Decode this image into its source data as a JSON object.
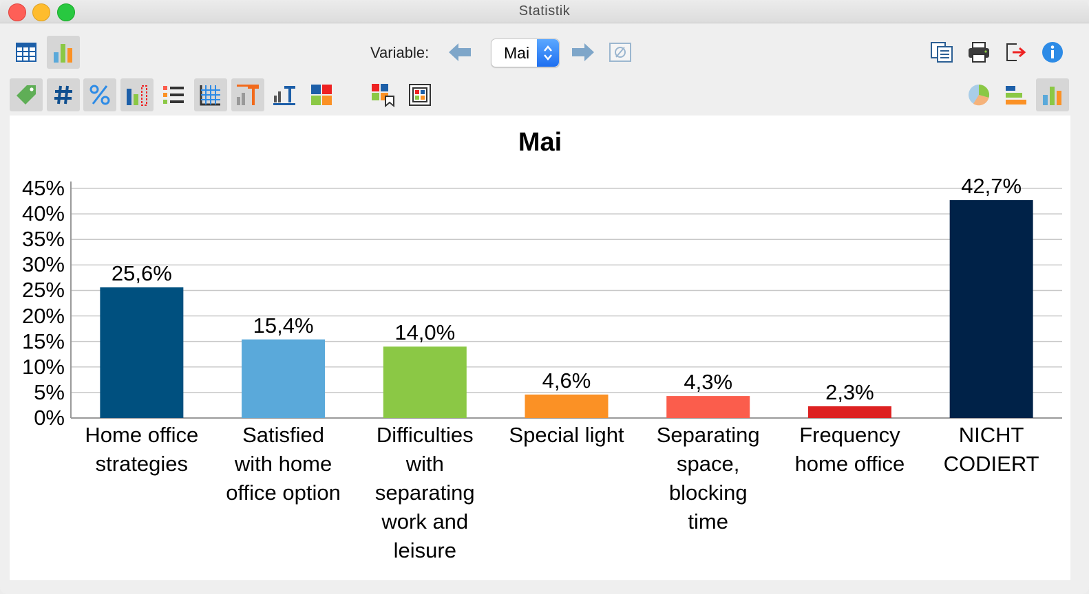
{
  "window": {
    "title": "Statistik"
  },
  "toolbar": {
    "variable_label": "Variable:",
    "variable_value": "Mai",
    "icons_top_left": [
      "table-view-icon",
      "chart-view-icon"
    ],
    "icons_top_nav": [
      "arrow-left-icon",
      "arrow-right-icon",
      "no-filter-icon"
    ],
    "icons_top_right": [
      "copy-icon",
      "print-icon",
      "export-icon",
      "info-icon"
    ],
    "icons_format": [
      "tag-icon",
      "hash-icon",
      "percent-icon",
      "bar-missing-icon",
      "list-icon",
      "grid-icon",
      "title-icon",
      "axis-labels-icon",
      "colors-icon",
      "color-mark-icon",
      "frame-icon"
    ],
    "icons_chart_type": [
      "pie-chart-icon",
      "horizontal-bar-icon",
      "vertical-bar-icon"
    ]
  },
  "colors": {
    "accent": "#1e6ff0",
    "grid": "#c8c8c8"
  },
  "chart_data": {
    "type": "bar",
    "title": "Mai",
    "xlabel": "",
    "ylabel": "",
    "ylim": [
      0,
      45
    ],
    "yticks": [
      "0%",
      "5%",
      "10%",
      "15%",
      "20%",
      "25%",
      "30%",
      "35%",
      "40%",
      "45%"
    ],
    "grid": true,
    "categories": [
      "Home office strategies",
      "Satisfied with home office option",
      "Difficulties with separating work and leisure",
      "Special light",
      "Separating space, blocking time",
      "Frequency home office",
      "NICHT CODIERT"
    ],
    "values": [
      25.6,
      15.4,
      14.0,
      4.6,
      4.3,
      2.3,
      42.7
    ],
    "value_labels": [
      "25,6%",
      "15,4%",
      "14,0%",
      "4,6%",
      "4,3%",
      "2,3%",
      "42,7%"
    ],
    "bar_colors": [
      "#00507f",
      "#5aa9da",
      "#8bc845",
      "#fb9125",
      "#fb5d4c",
      "#dd2121",
      "#002248"
    ]
  }
}
